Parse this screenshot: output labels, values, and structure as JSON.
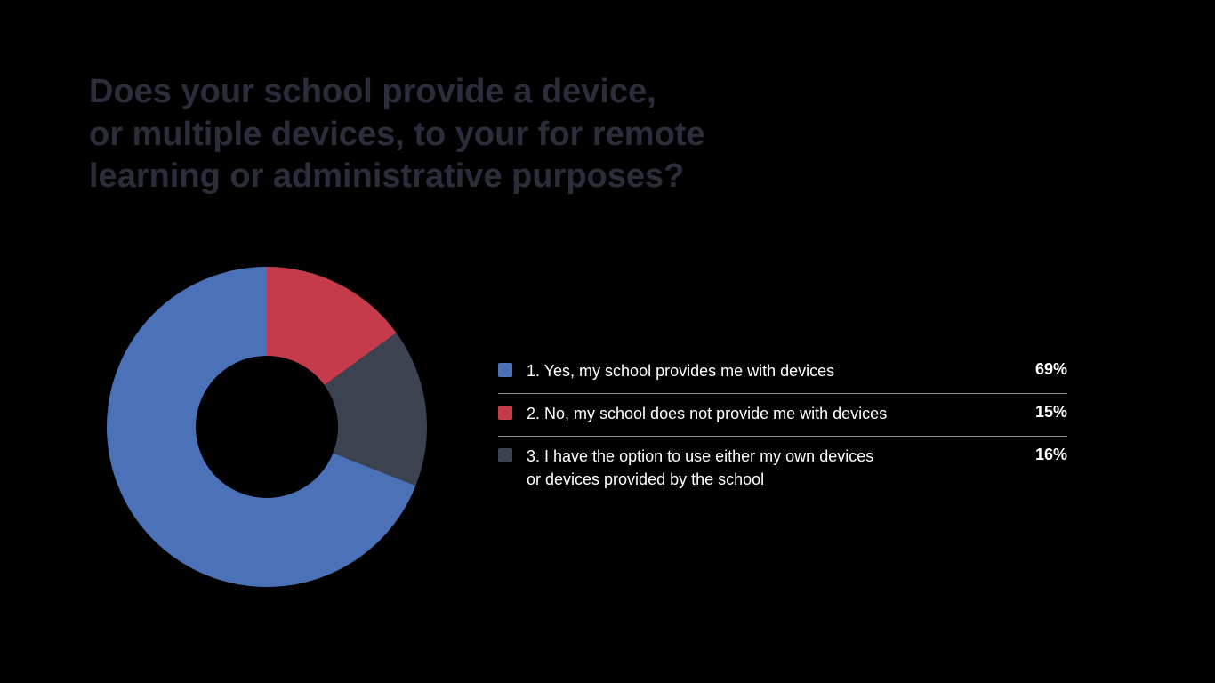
{
  "title": {
    "text": "Does your school provide a device,\nor multiple devices, to your for remote\nlearning or administrative purposes?",
    "color": "#2b2e3a",
    "fontsize": 38
  },
  "chart": {
    "type": "donut",
    "background_color": "#000000",
    "inner_hole_color": "#000000",
    "outer_radius": 180,
    "inner_radius": 80,
    "start_angle_deg": -90,
    "slices": [
      {
        "label": "1. Yes, my school provides me with devices",
        "value": 69,
        "color": "#4b72b8"
      },
      {
        "label": "2. No, my school does not provide me with devices",
        "value": 15,
        "color": "#c53b4c"
      },
      {
        "label": "3. I have the option to use either my own devices\nor devices provided by the school",
        "value": 16,
        "color": "#3c4250"
      }
    ]
  },
  "legend": {
    "label_color": "#ffffff",
    "label_fontsize": 18,
    "value_fontsize": 18,
    "value_suffix": "%",
    "divider_color": "rgba(255,255,255,0.55)"
  }
}
